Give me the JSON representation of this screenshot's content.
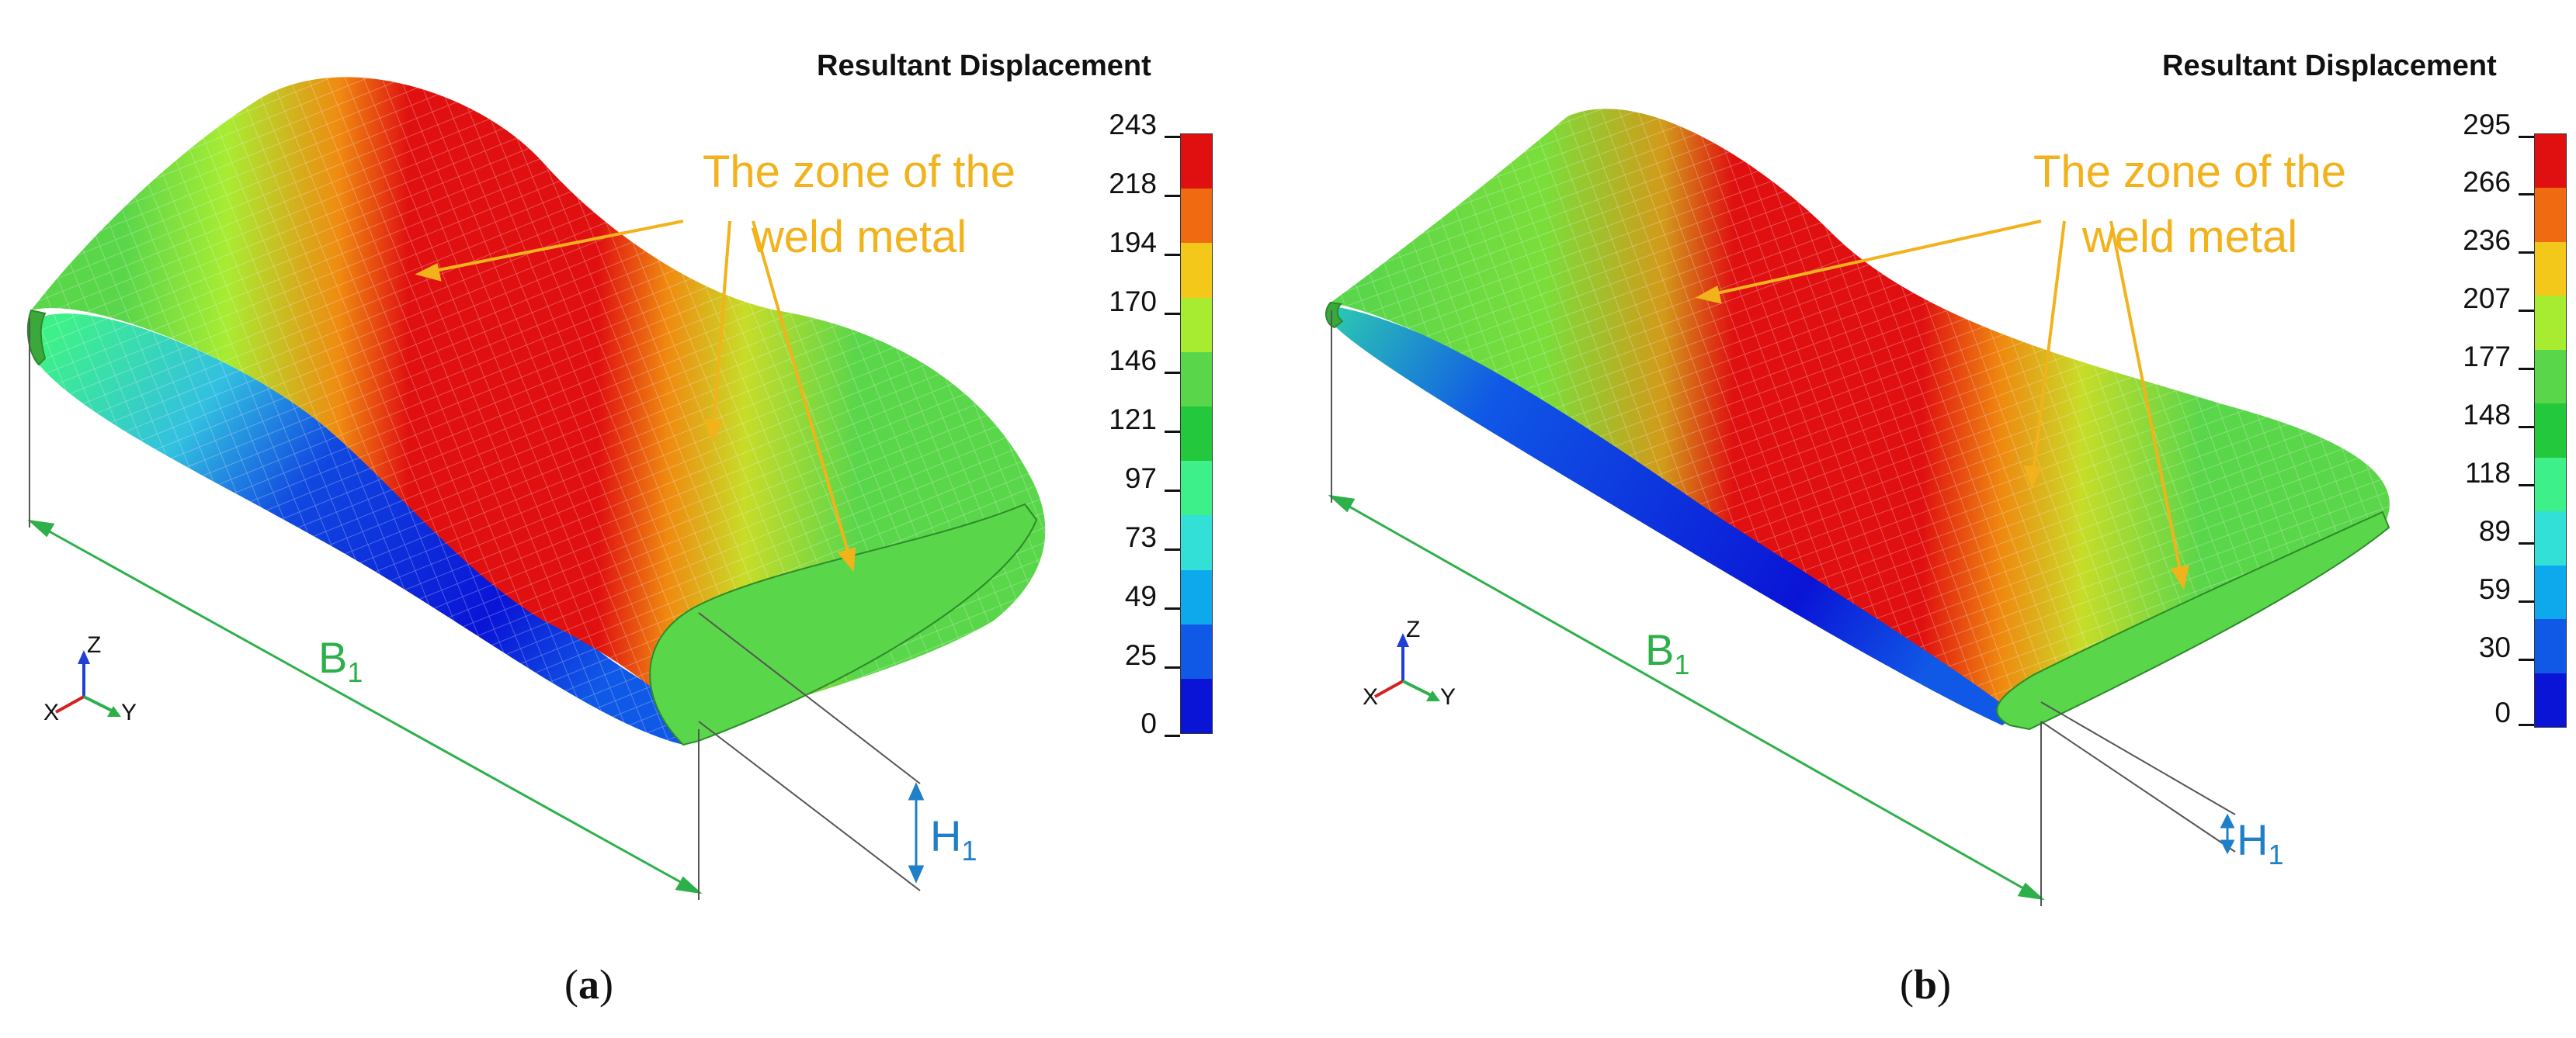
{
  "panels": [
    {
      "legend_title": "Resultant Displacement",
      "ticks": [
        "243",
        "218",
        "194",
        "170",
        "146",
        "121",
        "97",
        "73",
        "49",
        "25",
        "0"
      ],
      "annotation": [
        "The zone of the",
        "weld metal"
      ],
      "width_label": "B",
      "width_sub": "1",
      "height_label": "H",
      "height_sub": "1",
      "caption_open": "(",
      "caption_letter": "a",
      "caption_close": ")",
      "axes": {
        "z": "Z",
        "x": "X",
        "y": "Y"
      }
    },
    {
      "legend_title": "Resultant Displacement",
      "ticks": [
        "295",
        "266",
        "236",
        "207",
        "177",
        "148",
        "118",
        "89",
        "59",
        "30",
        "0"
      ],
      "annotation": [
        "The zone of the",
        "weld metal"
      ],
      "width_label": "B",
      "width_sub": "1",
      "height_label": "H",
      "height_sub": "1",
      "caption_open": "(",
      "caption_letter": "b",
      "caption_close": ")",
      "axes": {
        "z": "Z",
        "x": "X",
        "y": "Y"
      }
    }
  ],
  "colors": {
    "scale": [
      "#e01010",
      "#ef6a10",
      "#f4c81a",
      "#a8ec32",
      "#5ad64a",
      "#24c83c",
      "#3ef08a",
      "#32e0d8",
      "#0ea8ec",
      "#1058e6",
      "#0a14d6"
    ],
    "annotation": "#f2b21c",
    "b_dimension": "#2db04a",
    "h_dimension": "#1f7fc8"
  }
}
